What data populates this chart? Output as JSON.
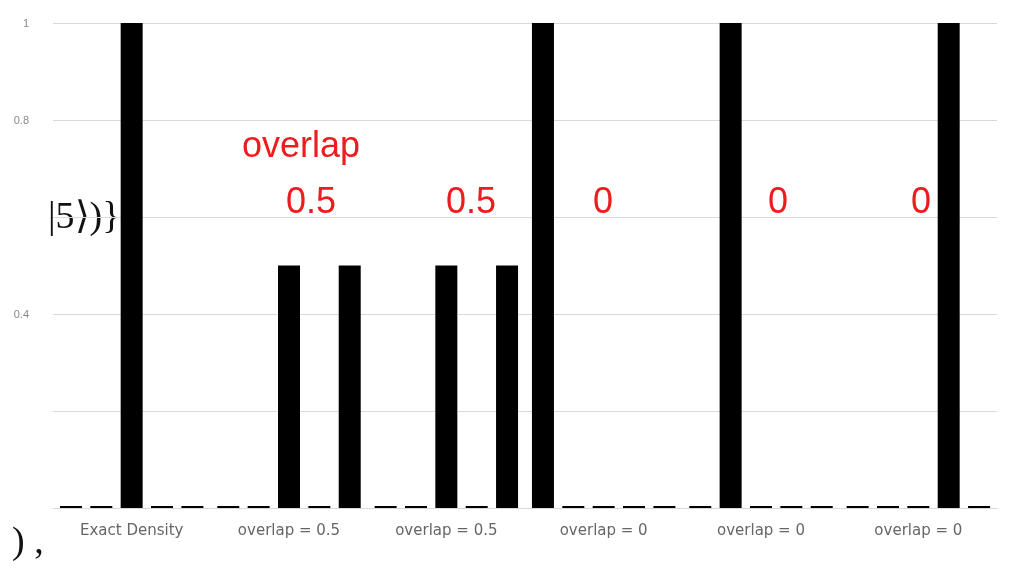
{
  "chart_data": {
    "type": "bar",
    "categories": [
      "Exact Density",
      "overlap = 0.5",
      "overlap = 0.5",
      "overlap = 0",
      "overlap = 0",
      "overlap = 0"
    ],
    "series": [
      {
        "color": "#000000",
        "values": [
          0,
          0,
          0,
          1,
          0,
          0
        ]
      },
      {
        "color": "#000000",
        "values": [
          0,
          0,
          0,
          0,
          1,
          0
        ]
      },
      {
        "color": "#000000",
        "values": [
          1,
          0.5,
          0.5,
          0,
          0,
          0
        ]
      },
      {
        "color": "#000000",
        "values": [
          0,
          0,
          0,
          0,
          0,
          1
        ]
      },
      {
        "color": "#000000",
        "values": [
          0,
          0.5,
          0.5,
          0,
          0,
          0
        ]
      }
    ],
    "ylim": [
      0,
      1
    ],
    "yticks": [
      {
        "value": 0,
        "label": null
      },
      {
        "value": 0.2,
        "label": null
      },
      0.4,
      {
        "value": 0.6,
        "label": null
      },
      0.8,
      1
    ],
    "grid": "y",
    "annotations": [
      "overlap",
      "0.5",
      "0.5",
      "0",
      "0",
      "0",
      "|5⟩)}",
      ") ,"
    ]
  }
}
